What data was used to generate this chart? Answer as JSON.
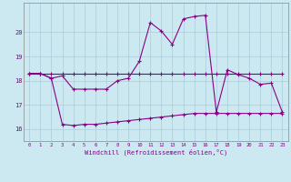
{
  "xlabel": "Windchill (Refroidissement éolien,°C)",
  "x": [
    0,
    1,
    2,
    3,
    4,
    5,
    6,
    7,
    8,
    9,
    10,
    11,
    12,
    13,
    14,
    15,
    16,
    17,
    18,
    19,
    20,
    21,
    22,
    23
  ],
  "line_flat": [
    18.3,
    18.3,
    18.3,
    18.3,
    18.3,
    18.3,
    18.3,
    18.3,
    18.3,
    18.3,
    18.3,
    18.3,
    18.3,
    18.3,
    18.3,
    18.3,
    18.3,
    18.3,
    18.3,
    18.3,
    18.3,
    18.3,
    18.3,
    18.3
  ],
  "line_peak": [
    18.3,
    18.3,
    18.1,
    18.2,
    17.65,
    17.65,
    17.65,
    17.65,
    18.0,
    18.1,
    18.8,
    20.4,
    20.05,
    19.5,
    20.55,
    20.65,
    20.7,
    16.7,
    18.45,
    18.25,
    18.1,
    17.85,
    17.9,
    16.7
  ],
  "line_bottom": [
    18.3,
    18.3,
    18.1,
    16.2,
    16.15,
    16.2,
    16.2,
    16.25,
    16.3,
    16.35,
    16.4,
    16.45,
    16.5,
    16.55,
    16.6,
    16.65,
    16.65,
    16.65,
    16.65,
    16.65,
    16.65,
    16.65,
    16.65,
    16.65
  ],
  "ylim": [
    15.5,
    21.2
  ],
  "yticks": [
    16,
    17,
    18,
    19,
    20
  ],
  "line_color": "#880088",
  "bg_color": "#cce8f0",
  "grid_color": "#aaccdd",
  "spine_color": "#888888"
}
